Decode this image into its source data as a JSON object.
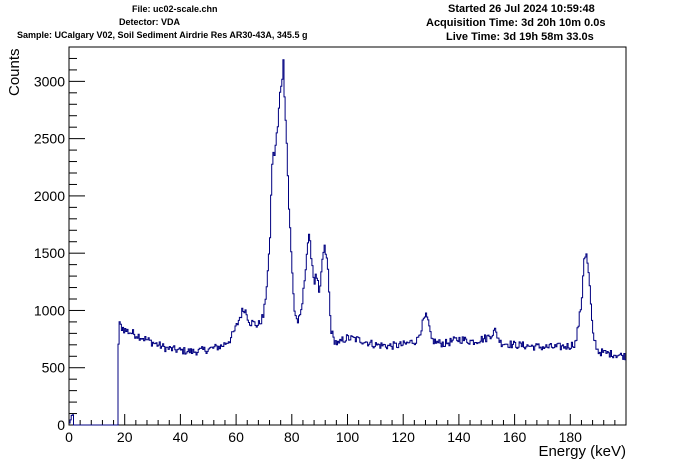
{
  "header": {
    "file": "File: uc02-scale.chn",
    "detector": "Detector: VDA",
    "sample": "Sample: UCalgary V02, Soil Sediment Airdrie Res AR30-43A, 345.5 g",
    "started": "Started 26 Jul 2024 10:59:48",
    "acquisition": "Acquisition Time: 3d 20h 10m 0.0s",
    "live": "Live Time: 3d 19h 58m 33.0s"
  },
  "chart_data": {
    "type": "line",
    "xlabel": "Energy (keV)",
    "ylabel": "Counts",
    "xlim": [
      0,
      200
    ],
    "ylim": [
      0,
      3300
    ],
    "x_ticks": [
      0,
      20,
      40,
      60,
      80,
      100,
      120,
      140,
      160,
      180
    ],
    "y_ticks": [
      0,
      500,
      1000,
      1500,
      2000,
      2500,
      3000
    ],
    "line_color": "#000080",
    "series": [
      {
        "x": [
          0,
          1,
          17,
          18,
          20,
          25,
          30,
          35,
          40,
          45,
          50,
          55,
          58,
          60,
          62,
          63,
          65,
          68,
          70,
          72,
          73,
          74,
          75,
          76,
          77,
          78,
          79,
          80,
          81,
          82,
          83,
          84,
          85,
          86,
          87,
          88,
          89,
          90,
          91,
          92,
          93,
          94,
          95,
          96,
          97,
          98,
          100,
          105,
          110,
          115,
          120,
          125,
          127,
          128,
          129,
          130,
          132,
          135,
          140,
          145,
          150,
          152,
          153,
          155,
          160,
          165,
          170,
          175,
          180,
          182,
          184,
          185,
          186,
          187,
          188,
          190,
          195,
          200
        ],
        "y": [
          0,
          80,
          0,
          880,
          830,
          780,
          720,
          670,
          650,
          640,
          660,
          690,
          750,
          850,
          980,
          1020,
          900,
          870,
          960,
          1500,
          2300,
          2400,
          2600,
          2950,
          3150,
          2600,
          1900,
          1400,
          1000,
          900,
          930,
          1100,
          1400,
          1650,
          1500,
          1250,
          1300,
          1100,
          1450,
          1550,
          1350,
          850,
          750,
          720,
          700,
          740,
          760,
          740,
          700,
          690,
          700,
          740,
          880,
          950,
          900,
          750,
          720,
          710,
          750,
          730,
          760,
          800,
          820,
          720,
          700,
          690,
          680,
          680,
          690,
          720,
          1050,
          1480,
          1470,
          1200,
          800,
          640,
          620,
          600
        ]
      }
    ]
  }
}
